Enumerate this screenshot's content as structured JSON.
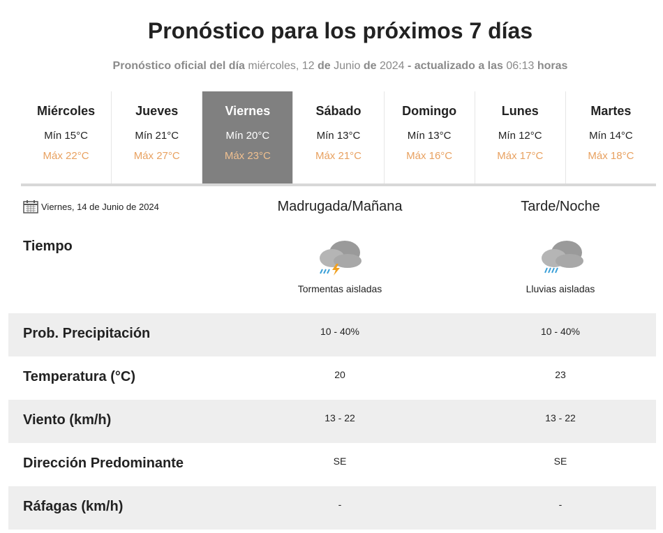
{
  "header": {
    "title": "Pronóstico para los próximos 7 días",
    "subtitle": [
      "Pronóstico oficial del día",
      "miércoles, 12",
      "de",
      "Junio",
      "de",
      "2024",
      "- actualizado a las",
      "06:13",
      "horas"
    ]
  },
  "days": [
    {
      "name": "Miércoles",
      "min": "Mín 15°C",
      "max": "Máx 22°C"
    },
    {
      "name": "Jueves",
      "min": "Mín 21°C",
      "max": "Máx 27°C"
    },
    {
      "name": "Viernes",
      "min": "Mín 20°C",
      "max": "Máx 23°C"
    },
    {
      "name": "Sábado",
      "min": "Mín 13°C",
      "max": "Máx 21°C"
    },
    {
      "name": "Domingo",
      "min": "Mín 13°C",
      "max": "Máx 16°C"
    },
    {
      "name": "Lunes",
      "min": "Mín 12°C",
      "max": "Máx 17°C"
    },
    {
      "name": "Martes",
      "min": "Mín 14°C",
      "max": "Máx 18°C"
    }
  ],
  "selected_day": 2,
  "detail": {
    "date": "Viernes, 14 de Junio de 2024",
    "columns": [
      "Madrugada/Mañana",
      "Tarde/Noche"
    ],
    "weather": {
      "label": "Tiempo",
      "values": [
        "Tormentas aisladas",
        "Lluvias aisladas"
      ]
    },
    "rows": [
      {
        "label": "Prob. Precipitación",
        "values": [
          "10 - 40%",
          "10 - 40%"
        ]
      },
      {
        "label": "Temperatura (°C)",
        "values": [
          "20",
          "23"
        ]
      },
      {
        "label": "Viento (km/h)",
        "values": [
          "13 - 22",
          "13 - 22"
        ]
      },
      {
        "label": "Dirección Predominante",
        "values": [
          "SE",
          "SE"
        ]
      },
      {
        "label": "Ráfagas (km/h)",
        "values": [
          "-",
          "-"
        ]
      }
    ]
  }
}
